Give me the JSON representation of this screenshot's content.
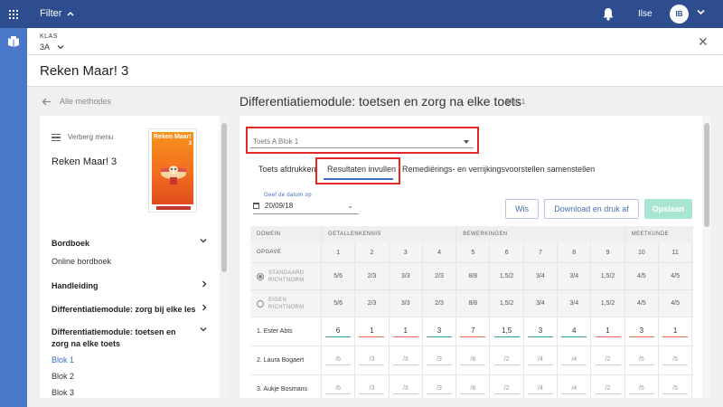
{
  "topbar": {
    "filter_label": "Filter",
    "username": "Ilse",
    "avatar_initials": "IB"
  },
  "classbar": {
    "klas_label": "KLAS",
    "klas_value": "3A"
  },
  "app_title": "Reken Maar! 3",
  "back_link": "Alle methodes",
  "page": {
    "title": "Differentiatiemodule: toetsen en zorg na elke toets",
    "subtitle": "Blok 1"
  },
  "sidebar": {
    "toggle_label": "Verberg menu",
    "method_title": "Reken Maar! 3",
    "cover": {
      "title": "Reken Maar!",
      "grade": "3"
    },
    "sections": [
      {
        "label": "Bordboek",
        "chevron": "down"
      },
      {
        "label": "Handleiding",
        "chevron": "right"
      },
      {
        "label": "Differentiatiemodule: zorg bij elke les",
        "chevron": "right"
      },
      {
        "label": "Differentiatiemodule: toetsen en zorg na elke toets",
        "chevron": "down"
      }
    ],
    "bordboek_link": "Online bordboek",
    "blok_links": [
      "Blok 1",
      "Blok 2",
      "Blok 3"
    ],
    "active_blok": 0
  },
  "main": {
    "test_select": "Toets A Blok 1",
    "tabs": [
      "Toets afdrukken",
      "Resultaten invullen",
      "Remediërings- en verrijkingsvoorstellen samenstellen"
    ],
    "active_tab": 1,
    "date_label": "Geef de datum op",
    "date_value": "20/09/18",
    "buttons": {
      "wis": "Wis",
      "download": "Download en druk af",
      "save": "Opslaan"
    }
  },
  "table": {
    "domain_label": "DOMEIN",
    "opgave_label": "OPGAVE",
    "domains": [
      "GETALLENKENNIS",
      "BEWERKINGEN",
      "MEETKUNDE"
    ],
    "opgaven": [
      "1",
      "2",
      "3",
      "4",
      "5",
      "6",
      "7",
      "8",
      "9",
      "10",
      "11"
    ],
    "standard_norm": {
      "label_line1": "STANDAARD",
      "label_line2": "RICHTNORM",
      "values": [
        "5/6",
        "2/3",
        "3/3",
        "2/3",
        "8/8",
        "1,5/2",
        "3/4",
        "3/4",
        "1,5/2",
        "4/5",
        "4/5"
      ]
    },
    "own_norm": {
      "label_line1": "EIGEN",
      "label_line2": "RICHTNORM",
      "values": [
        "5/6",
        "2/3",
        "3/3",
        "2/3",
        "8/8",
        "1,5/2",
        "3/4",
        "3/4",
        "1,5/2",
        "4/5",
        "4/5"
      ]
    },
    "students": [
      {
        "name": "1. Ester Abts",
        "scores": [
          "6",
          "1",
          "1",
          "3",
          "7",
          "1,5",
          "3",
          "4",
          "1",
          "3",
          "1"
        ],
        "status": [
          "green",
          "red",
          "red",
          "green",
          "red",
          "green",
          "green",
          "green",
          "red",
          "red",
          "red"
        ]
      },
      {
        "name": "2. Laura Bogaert",
        "scores": [
          "/6",
          "/3",
          "/3",
          "/3",
          "/8",
          "/2",
          "/4",
          "/4",
          "/2",
          "/5",
          "/5"
        ]
      },
      {
        "name": "3. Aukje Bosmans",
        "scores": [
          "/6",
          "/3",
          "/3",
          "/3",
          "/8",
          "/2",
          "/4",
          "/4",
          "/2",
          "/5",
          "/5"
        ]
      }
    ]
  },
  "colors": {
    "topbar": "#2e4d8f",
    "rail": "#4a78c9",
    "accent": "#3b6fc2",
    "highlight": "#e32626",
    "save_button": "#a8e6d3",
    "score_ok": "#2a9d8f",
    "score_bad": "#e76f51"
  }
}
